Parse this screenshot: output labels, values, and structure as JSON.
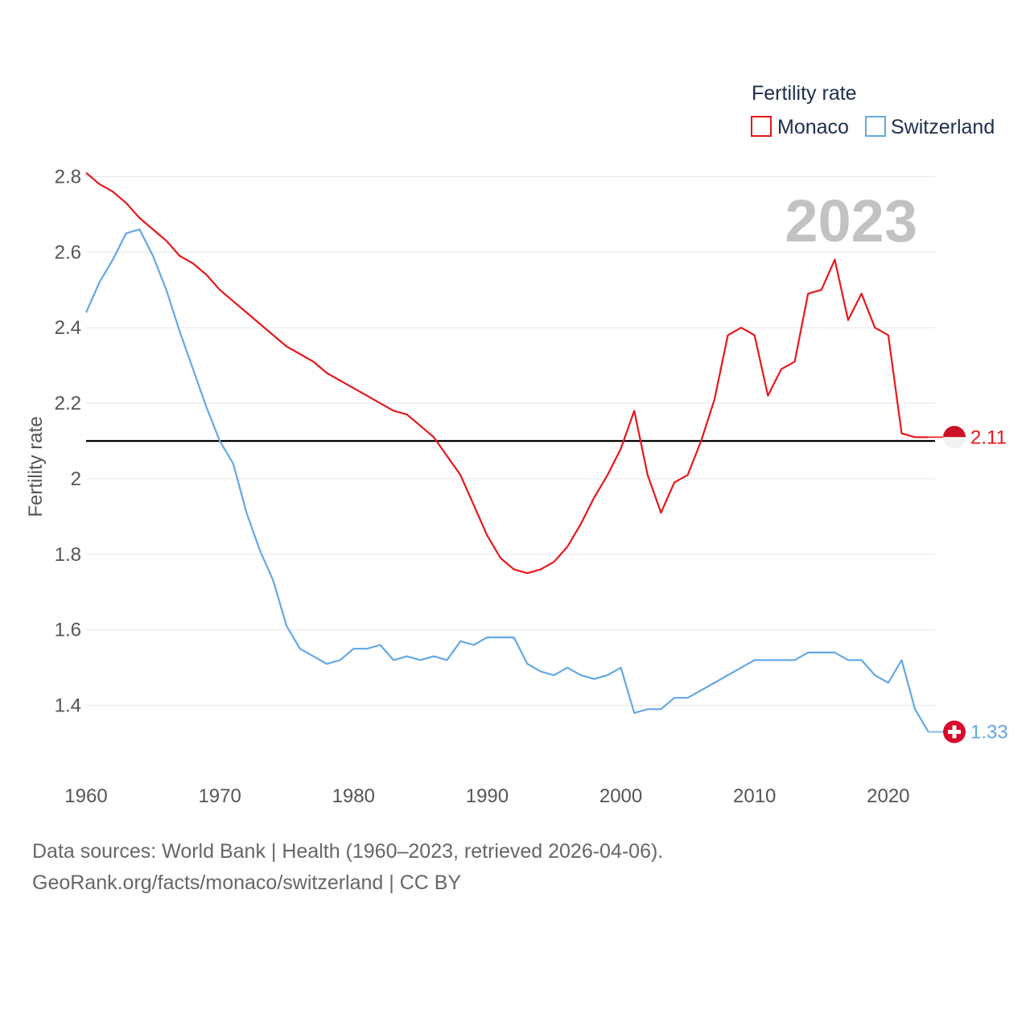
{
  "chart_data": {
    "type": "line",
    "legend_title": "Fertility rate",
    "ylabel": "Fertility rate",
    "xlabel": "",
    "year_label": "2023",
    "xlim": [
      1960,
      2023.5
    ],
    "ylim": [
      1.265,
      2.82
    ],
    "x_ticks": [
      1960,
      1970,
      1980,
      1990,
      2000,
      2010,
      2020
    ],
    "y_ticks": [
      1.4,
      1.6,
      1.8,
      2,
      2.2,
      2.4,
      2.6,
      2.8
    ],
    "y_tick_labels": [
      "1.4",
      "1.6",
      "1.8",
      "2",
      "2.2",
      "2.4",
      "2.6",
      "2.8"
    ],
    "reference_line": 2.1,
    "grid": true,
    "legend_position": "top-right",
    "x": [
      1960,
      1961,
      1962,
      1963,
      1964,
      1965,
      1966,
      1967,
      1968,
      1969,
      1970,
      1971,
      1972,
      1973,
      1974,
      1975,
      1976,
      1977,
      1978,
      1979,
      1980,
      1981,
      1982,
      1983,
      1984,
      1985,
      1986,
      1987,
      1988,
      1989,
      1990,
      1991,
      1992,
      1993,
      1994,
      1995,
      1996,
      1997,
      1998,
      1999,
      2000,
      2001,
      2002,
      2003,
      2004,
      2005,
      2006,
      2007,
      2008,
      2009,
      2010,
      2011,
      2012,
      2013,
      2014,
      2015,
      2016,
      2017,
      2018,
      2019,
      2020,
      2021,
      2022,
      2023
    ],
    "series": [
      {
        "name": "Monaco",
        "color": "#e8161b",
        "end_label": "2.11",
        "values": [
          2.81,
          2.78,
          2.76,
          2.73,
          2.69,
          2.66,
          2.63,
          2.59,
          2.57,
          2.54,
          2.5,
          2.47,
          2.44,
          2.41,
          2.38,
          2.35,
          2.33,
          2.31,
          2.28,
          2.26,
          2.24,
          2.22,
          2.2,
          2.18,
          2.17,
          2.14,
          2.11,
          2.06,
          2.01,
          1.93,
          1.85,
          1.79,
          1.76,
          1.75,
          1.76,
          1.78,
          1.82,
          1.88,
          1.95,
          2.01,
          2.08,
          2.18,
          2.01,
          1.91,
          1.99,
          2.01,
          2.1,
          2.21,
          2.38,
          2.4,
          2.38,
          2.22,
          2.29,
          2.31,
          2.49,
          2.5,
          2.58,
          2.42,
          2.49,
          2.4,
          2.38,
          2.12,
          2.11,
          2.11
        ]
      },
      {
        "name": "Switzerland",
        "color": "#63a8e6",
        "end_label": "1.33",
        "values": [
          2.44,
          2.52,
          2.58,
          2.65,
          2.66,
          2.59,
          2.5,
          2.39,
          2.29,
          2.19,
          2.1,
          2.04,
          1.91,
          1.81,
          1.73,
          1.61,
          1.55,
          1.53,
          1.51,
          1.52,
          1.55,
          1.55,
          1.56,
          1.52,
          1.53,
          1.52,
          1.53,
          1.52,
          1.57,
          1.56,
          1.58,
          1.58,
          1.58,
          1.51,
          1.49,
          1.48,
          1.5,
          1.48,
          1.47,
          1.48,
          1.5,
          1.38,
          1.39,
          1.39,
          1.42,
          1.42,
          1.44,
          1.46,
          1.48,
          1.5,
          1.52,
          1.52,
          1.52,
          1.52,
          1.54,
          1.54,
          1.54,
          1.52,
          1.52,
          1.48,
          1.46,
          1.52,
          1.39,
          1.33
        ]
      }
    ]
  },
  "source": {
    "line1": "Data sources: World Bank | Health (1960–2023, retrieved 2026-04-06).",
    "line2": "GeoRank.org/facts/monaco/switzerland | CC BY"
  },
  "flags": [
    {
      "name": "monaco-flag-icon",
      "colors": [
        "#ce1126",
        "#f2f2f2"
      ]
    },
    {
      "name": "switzerland-flag-icon",
      "colors": [
        "#da0a2b",
        "#ffffff"
      ]
    }
  ]
}
